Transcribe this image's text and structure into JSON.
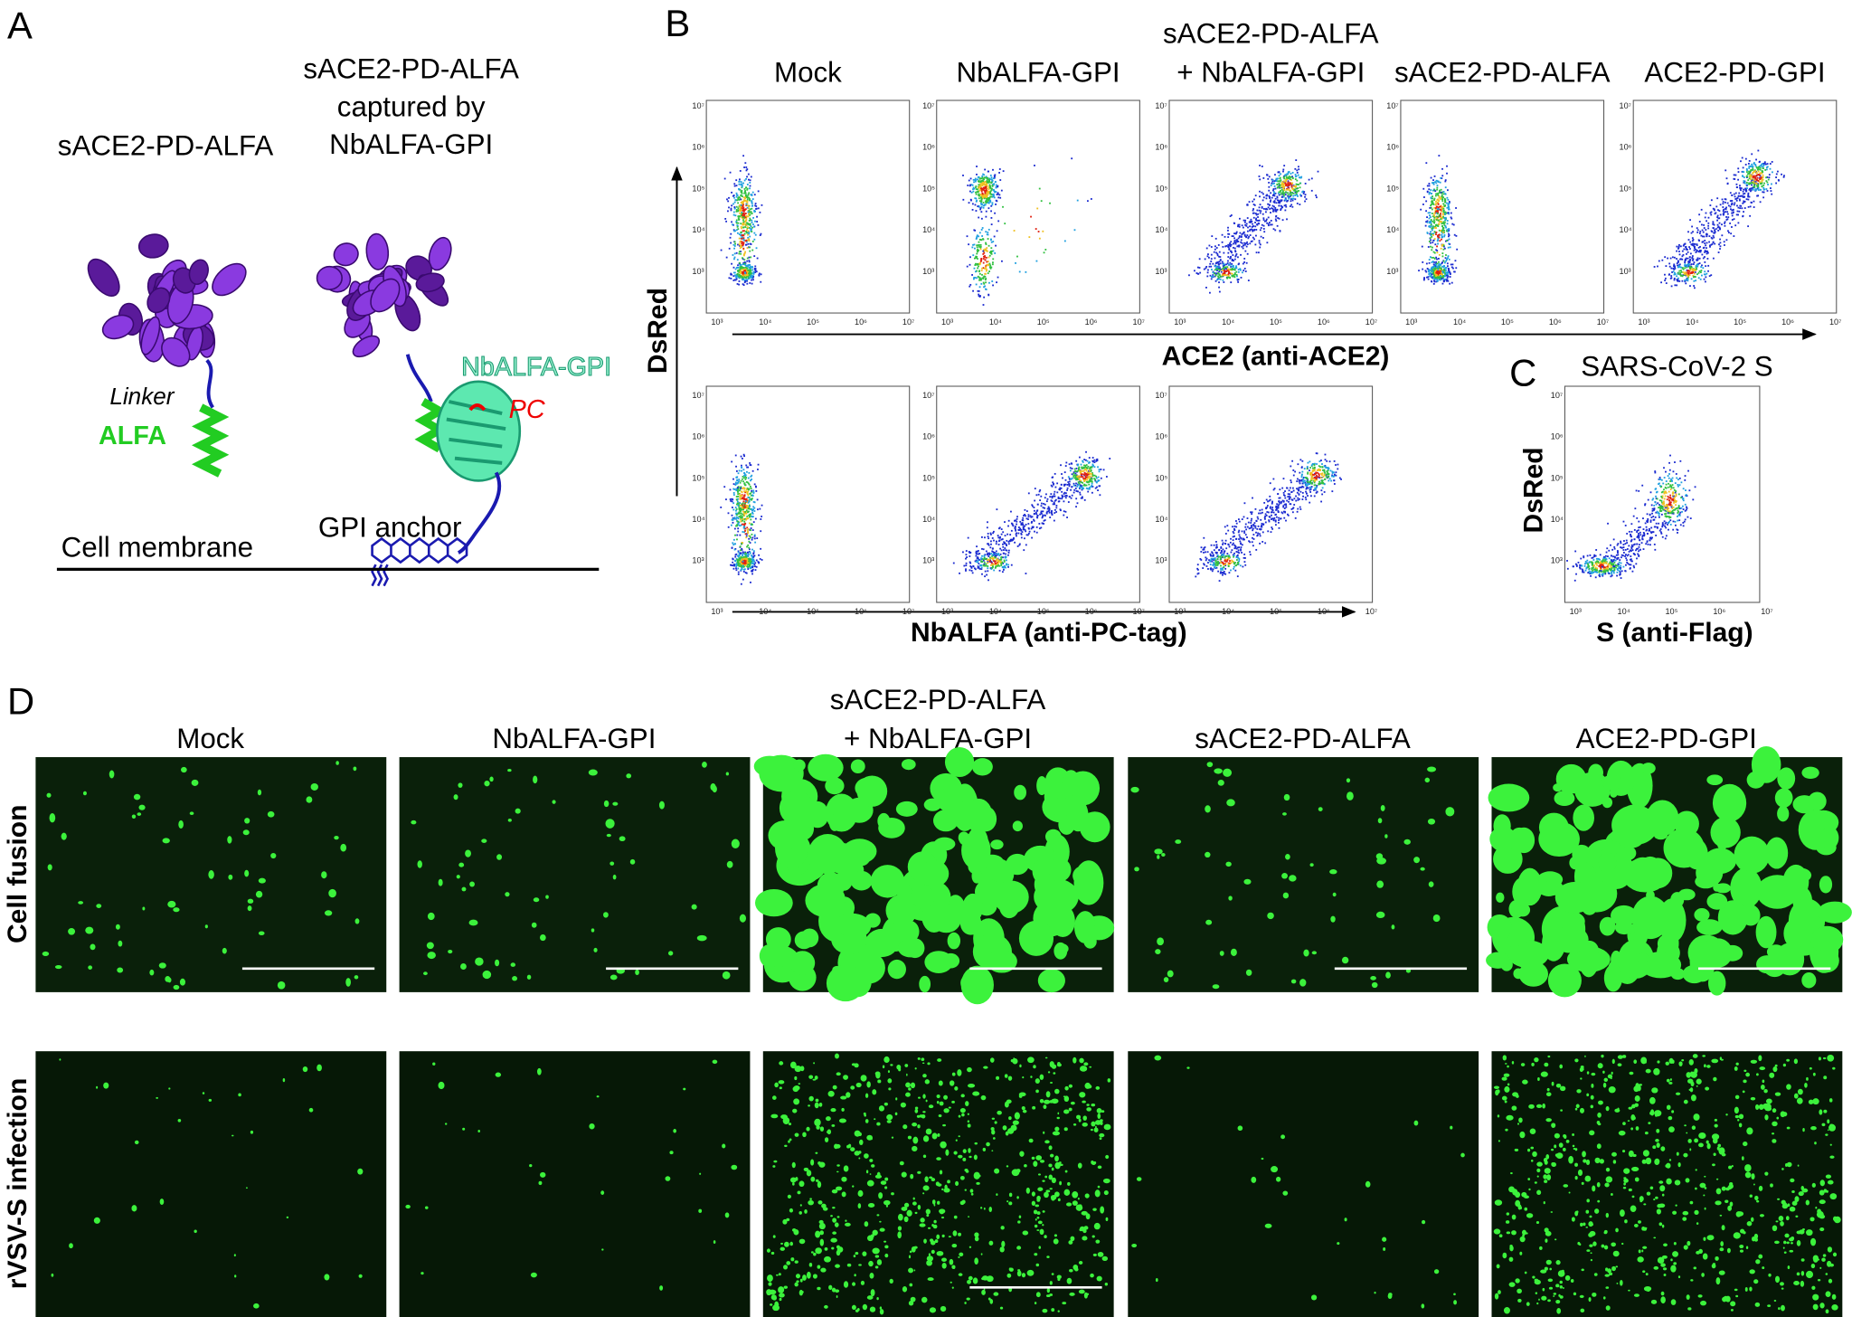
{
  "panel_a": {
    "label": "A",
    "left_title": "sACE2-PD-ALFA",
    "right_title_lines": [
      "sACE2-PD-ALFA",
      "captured by",
      "NbALFA-GPI"
    ],
    "linker": "Linker",
    "alfa": "ALFA",
    "nbalfa_gpi": "NbALFA-GPI",
    "pc": "PC",
    "gpi_anchor": "GPI anchor",
    "cell_membrane": "Cell membrane"
  },
  "panel_b": {
    "label": "B",
    "columns": [
      {
        "lines": [
          "Mock"
        ]
      },
      {
        "lines": [
          "NbALFA-GPI"
        ]
      },
      {
        "lines": [
          "sACE2-PD-ALFA",
          "+ NbALFA-GPI"
        ]
      },
      {
        "lines": [
          "sACE2-PD-ALFA"
        ]
      },
      {
        "lines": [
          "ACE2-PD-GPI"
        ]
      }
    ],
    "y_axis": "DsRed",
    "x_axis_top": "ACE2 (anti-ACE2)",
    "x_axis_bottom": "NbALFA (anti-PC-tag)",
    "ticks": [
      "10³",
      "10⁴",
      "10⁵",
      "10⁶",
      "10⁷"
    ]
  },
  "panel_c": {
    "label": "C",
    "title": "SARS-CoV-2 S",
    "y_axis": "DsRed",
    "x_axis": "S (anti-Flag)"
  },
  "panel_d": {
    "label": "D",
    "columns": [
      {
        "lines": [
          "Mock"
        ]
      },
      {
        "lines": [
          "NbALFA-GPI"
        ]
      },
      {
        "lines": [
          "sACE2-PD-ALFA",
          "+ NbALFA-GPI"
        ]
      },
      {
        "lines": [
          "sACE2-PD-ALFA"
        ]
      },
      {
        "lines": [
          "ACE2-PD-GPI"
        ]
      }
    ],
    "rows": [
      "Cell fusion",
      "rVSV-S infection"
    ]
  }
}
